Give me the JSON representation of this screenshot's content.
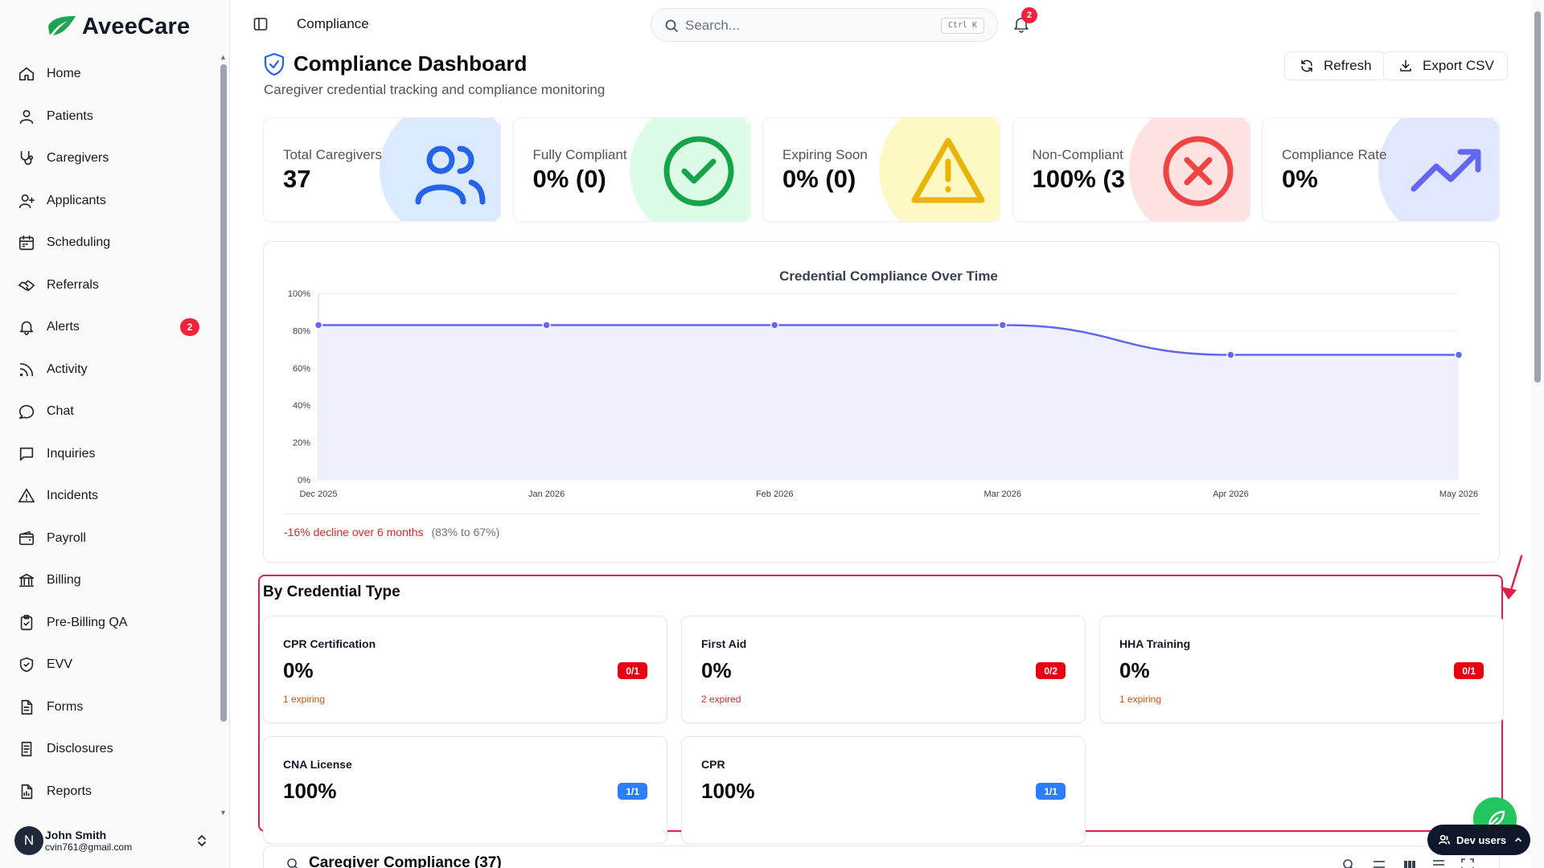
{
  "app": {
    "name": "AveeCare"
  },
  "sidebar": {
    "items": [
      {
        "label": "Home",
        "icon": "home-icon"
      },
      {
        "label": "Patients",
        "icon": "user-icon"
      },
      {
        "label": "Caregivers",
        "icon": "stethoscope-icon"
      },
      {
        "label": "Applicants",
        "icon": "user-plus-icon"
      },
      {
        "label": "Scheduling",
        "icon": "calendar-icon"
      },
      {
        "label": "Referrals",
        "icon": "handshake-icon"
      },
      {
        "label": "Alerts",
        "icon": "bell-icon",
        "badge": "2"
      },
      {
        "label": "Activity",
        "icon": "rss-icon"
      },
      {
        "label": "Chat",
        "icon": "chat-icon"
      },
      {
        "label": "Inquiries",
        "icon": "message-square-icon"
      },
      {
        "label": "Incidents",
        "icon": "warning-icon"
      },
      {
        "label": "Payroll",
        "icon": "wallet-icon"
      },
      {
        "label": "Billing",
        "icon": "bank-icon"
      },
      {
        "label": "Pre-Billing QA",
        "icon": "clipboard-check-icon"
      },
      {
        "label": "EVV",
        "icon": "shield-check-icon"
      },
      {
        "label": "Forms",
        "icon": "file-text-icon"
      },
      {
        "label": "Disclosures",
        "icon": "document-icon"
      },
      {
        "label": "Reports",
        "icon": "report-icon"
      }
    ],
    "user": {
      "initial": "N",
      "name": "John Smith",
      "email": "cvin761@gmail.com"
    }
  },
  "header": {
    "breadcrumb": "Compliance",
    "search_placeholder": "Search...",
    "search_shortcut": "Ctrl K",
    "notification_count": "2"
  },
  "page": {
    "title": "Compliance Dashboard",
    "subtitle": "Caregiver credential tracking and compliance monitoring",
    "refresh_label": "Refresh",
    "export_label": "Export CSV"
  },
  "stats": [
    {
      "label": "Total Caregivers",
      "value": "37",
      "color": "#2563eb",
      "bg": "#dbeafe"
    },
    {
      "label": "Fully Compliant",
      "value": "0% (0)",
      "color": "#16a34a",
      "bg": "#dcfce7"
    },
    {
      "label": "Expiring Soon",
      "value": "0% (0)",
      "color": "#eab308",
      "bg": "#fef9c3"
    },
    {
      "label": "Non-Compliant",
      "value": "100% (3",
      "color": "#ef4444",
      "bg": "#fee2e2"
    },
    {
      "label": "Compliance Rate",
      "value": "0%",
      "color": "#6366f1",
      "bg": "#e0e7ff"
    }
  ],
  "chart_data": {
    "type": "area",
    "title": "Credential Compliance Over Time",
    "x": [
      "Dec 2025",
      "Jan 2026",
      "Feb 2026",
      "Mar 2026",
      "Apr 2026",
      "May 2026"
    ],
    "values": [
      83,
      83,
      83,
      83,
      67,
      67
    ],
    "ylim": [
      0,
      100
    ],
    "yticks": [
      "0%",
      "20%",
      "40%",
      "60%",
      "80%",
      "100%"
    ],
    "grid": true,
    "color": "#6366f1",
    "fill": "#eef0fd"
  },
  "chart_footer": {
    "trend": "-16% decline over 6 months",
    "range": "(83% to 67%)"
  },
  "credentials": {
    "title": "By Credential Type",
    "items": [
      {
        "name": "CPR Certification",
        "pct": "0%",
        "badge": "0/1",
        "status": "red",
        "note": "1 expiring",
        "note_type": "amber"
      },
      {
        "name": "First Aid",
        "pct": "0%",
        "badge": "0/2",
        "status": "red",
        "note": "2 expired",
        "note_type": "red"
      },
      {
        "name": "HHA Training",
        "pct": "0%",
        "badge": "0/1",
        "status": "red",
        "note": "1 expiring",
        "note_type": "amber"
      },
      {
        "name": "CNA License",
        "pct": "100%",
        "badge": "1/1",
        "status": "blue",
        "note": "",
        "note_type": ""
      },
      {
        "name": "CPR",
        "pct": "100%",
        "badge": "1/1",
        "status": "blue",
        "note": "",
        "note_type": ""
      }
    ]
  },
  "bottom": {
    "title": "Caregiver Compliance (37)"
  },
  "dev": {
    "label": "Dev users"
  }
}
